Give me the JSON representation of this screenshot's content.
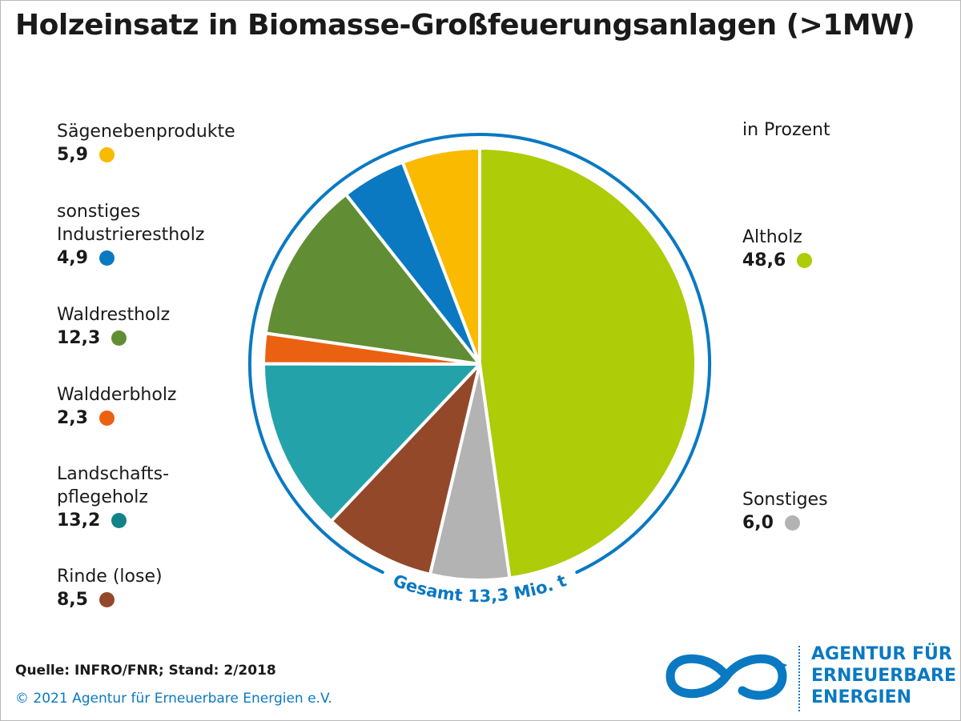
{
  "title": "Holzeinsatz in Biomasse-Großfeuerungsanlagen (>1MW)",
  "unit_label": "in Prozent",
  "total_label": "Gesamt 13,3 Mio. t",
  "source": "Quelle: INFRO/FNR; Stand: 2/2018",
  "copyright": "© 2021 Agentur für Erneuerbare Energien e.V.",
  "logo": {
    "line1": "AGENTUR FÜR",
    "line2": "ERNEUERBARE",
    "line3": "ENERGIEN"
  },
  "legend": {
    "saegeneben": {
      "name": "Sägenebenprodukte",
      "value": "5,9"
    },
    "industrie": {
      "name": "sonstiges\nIndustrierestholz",
      "value": "4,9"
    },
    "waldrest": {
      "name": "Waldrestholz",
      "value": "12,3"
    },
    "waldderb": {
      "name": "Waldderbholz",
      "value": "2,3"
    },
    "landschaft": {
      "name": "Landschafts-\npflegeholz",
      "value": "13,2"
    },
    "rinde": {
      "name": "Rinde (lose)",
      "value": "8,5"
    },
    "altholz": {
      "name": "Altholz",
      "value": "48,6"
    },
    "sonstiges": {
      "name": "Sonstiges",
      "value": "6,0"
    }
  },
  "chart_data": {
    "type": "pie",
    "unit": "in Prozent",
    "start_angle_deg": 0,
    "direction": "clockwise",
    "slices": [
      {
        "label": "Altholz",
        "value": 48.6,
        "color": "#aecc07"
      },
      {
        "label": "Sonstiges",
        "value": 6.0,
        "color": "#b4b3b4"
      },
      {
        "label": "Rinde (lose)",
        "value": 8.5,
        "color": "#93482a"
      },
      {
        "label": "Landschafts-pflegeholz",
        "value": 13.2,
        "color": "#24a2a9"
      },
      {
        "label": "Waldderbholz",
        "value": 2.3,
        "color": "#ea6111"
      },
      {
        "label": "Waldrestholz",
        "value": 12.3,
        "color": "#618d34"
      },
      {
        "label": "sonstiges Industrierestholz",
        "value": 4.9,
        "color": "#0a79c2"
      },
      {
        "label": "Sägenebenprodukte",
        "value": 5.9,
        "color": "#f9ba00"
      }
    ],
    "total": "Gesamt 13,3 Mio. t"
  }
}
